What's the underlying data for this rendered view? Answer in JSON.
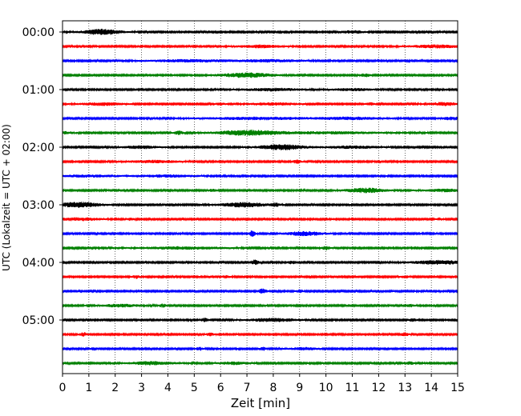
{
  "chart_data": {
    "type": "line",
    "title": "",
    "xlabel": "Zeit  [min]",
    "ylabel": "UTC (Lokalzeit = UTC + 02:00)",
    "xlim": [
      0,
      15
    ],
    "x_ticks": [
      0,
      1,
      2,
      3,
      4,
      5,
      6,
      7,
      8,
      9,
      10,
      11,
      12,
      13,
      14,
      15
    ],
    "y_tick_labels": [
      "00:00",
      "01:00",
      "02:00",
      "03:00",
      "04:00",
      "05:00"
    ],
    "grid": "vertical dotted",
    "trace_interval_minutes": 15,
    "trace_colors": [
      "#000000",
      "#ff0000",
      "#0000ff",
      "#008000"
    ],
    "traces": [
      {
        "start": "00:00",
        "color": "#000000",
        "events": [
          [
            1.5,
            3.2,
            0.5
          ],
          [
            11.0,
            1.5,
            0.3
          ]
        ]
      },
      {
        "start": "00:15",
        "color": "#ff0000",
        "events": [
          [
            7.5,
            1.5,
            0.6
          ],
          [
            14.2,
            1.6,
            0.7
          ]
        ]
      },
      {
        "start": "00:30",
        "color": "#0000ff",
        "events": [
          [
            5.0,
            1.3,
            1.2
          ],
          [
            8.0,
            1.3,
            0.8
          ]
        ]
      },
      {
        "start": "00:45",
        "color": "#008000",
        "events": [
          [
            7.0,
            2.6,
            0.7
          ],
          [
            11.5,
            1.8,
            0.12
          ]
        ]
      },
      {
        "start": "01:00",
        "color": "#000000",
        "events": [
          [
            8.0,
            1.4,
            0.8
          ],
          [
            11.0,
            1.3,
            0.5
          ]
        ]
      },
      {
        "start": "01:15",
        "color": "#ff0000",
        "events": [
          [
            1.5,
            1.5,
            0.6
          ],
          [
            6.0,
            1.3,
            0.12
          ],
          [
            8.0,
            1.3,
            0.7
          ],
          [
            11.7,
            1.3,
            0.12
          ],
          [
            14.5,
            1.8,
            0.4
          ]
        ]
      },
      {
        "start": "01:30",
        "color": "#0000ff",
        "events": [
          [
            7.5,
            1.3,
            1.5
          ],
          [
            11.0,
            1.3,
            0.8
          ],
          [
            14.8,
            1.5,
            0.3
          ]
        ]
      },
      {
        "start": "01:45",
        "color": "#008000",
        "events": [
          [
            0.0,
            1.4,
            0.3
          ],
          [
            4.4,
            2.0,
            0.12
          ],
          [
            7.0,
            2.8,
            0.8
          ],
          [
            10.0,
            1.2,
            1.5
          ]
        ]
      },
      {
        "start": "02:00",
        "color": "#000000",
        "events": [
          [
            3.0,
            1.5,
            0.5
          ],
          [
            8.3,
            3.0,
            0.6
          ],
          [
            11.0,
            1.3,
            0.8
          ]
        ]
      },
      {
        "start": "02:15",
        "color": "#ff0000",
        "events": [
          [
            3.5,
            1.4,
            0.7
          ],
          [
            8.9,
            2.5,
            0.1
          ]
        ]
      },
      {
        "start": "02:30",
        "color": "#0000ff",
        "events": [
          [
            1.0,
            1.2,
            0.8
          ],
          [
            4.0,
            1.2,
            0.8
          ]
        ]
      },
      {
        "start": "02:45",
        "color": "#008000",
        "events": [
          [
            5.7,
            1.6,
            0.1
          ],
          [
            11.5,
            2.8,
            0.5
          ],
          [
            14.5,
            1.4,
            0.6
          ]
        ]
      },
      {
        "start": "03:00",
        "color": "#000000",
        "events": [
          [
            0.6,
            3.0,
            0.6
          ],
          [
            6.9,
            2.6,
            0.6
          ],
          [
            8.1,
            1.8,
            0.1
          ]
        ]
      },
      {
        "start": "03:15",
        "color": "#ff0000",
        "events": [
          [
            0.6,
            1.6,
            0.6
          ],
          [
            2.6,
            1.3,
            0.1
          ],
          [
            14.3,
            1.3,
            0.1
          ]
        ]
      },
      {
        "start": "03:30",
        "color": "#0000ff",
        "events": [
          [
            7.2,
            3.4,
            0.08
          ],
          [
            9.2,
            2.3,
            0.5
          ]
        ]
      },
      {
        "start": "03:45",
        "color": "#008000",
        "events": [
          [
            4.5,
            1.3,
            1.2
          ],
          [
            10.0,
            1.8,
            0.12
          ]
        ]
      },
      {
        "start": "04:00",
        "color": "#000000",
        "events": [
          [
            7.3,
            2.8,
            0.1
          ],
          [
            8.7,
            1.8,
            0.1
          ],
          [
            14.3,
            2.2,
            0.7
          ]
        ]
      },
      {
        "start": "04:15",
        "color": "#ff0000",
        "events": [
          [
            2.8,
            1.8,
            0.1
          ],
          [
            6.2,
            1.6,
            0.1
          ],
          [
            13.0,
            1.4,
            0.1
          ]
        ]
      },
      {
        "start": "04:30",
        "color": "#0000ff",
        "events": [
          [
            7.6,
            2.8,
            0.1
          ],
          [
            9.0,
            1.6,
            0.1
          ]
        ]
      },
      {
        "start": "04:45",
        "color": "#008000",
        "events": [
          [
            2.2,
            1.5,
            0.5
          ],
          [
            3.8,
            1.7,
            0.1
          ],
          [
            13.2,
            1.4,
            0.1
          ]
        ]
      },
      {
        "start": "05:00",
        "color": "#000000",
        "events": [
          [
            5.4,
            1.8,
            0.1
          ],
          [
            8.0,
            1.8,
            0.7
          ],
          [
            13.3,
            1.6,
            0.1
          ]
        ]
      },
      {
        "start": "05:15",
        "color": "#ff0000",
        "events": [
          [
            0.8,
            2.0,
            0.1
          ],
          [
            5.6,
            1.6,
            0.1
          ],
          [
            13.0,
            2.0,
            0.1
          ]
        ]
      },
      {
        "start": "05:30",
        "color": "#0000ff",
        "events": [
          [
            1.2,
            1.4,
            0.1
          ],
          [
            5.2,
            1.6,
            0.1
          ],
          [
            7.6,
            1.8,
            0.1
          ],
          [
            9.2,
            1.3,
            0.4
          ]
        ]
      },
      {
        "start": "05:45",
        "color": "#008000",
        "events": [
          [
            3.4,
            1.8,
            0.6
          ],
          [
            6.5,
            1.5,
            0.4
          ],
          [
            13.2,
            1.6,
            0.1
          ]
        ]
      }
    ]
  }
}
